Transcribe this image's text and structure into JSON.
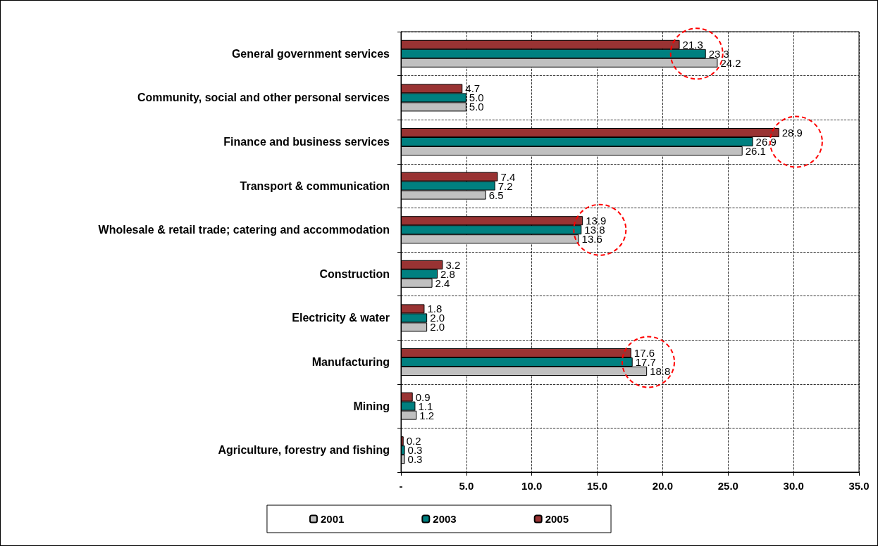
{
  "chart_data": {
    "type": "bar",
    "orientation": "horizontal",
    "categories": [
      "General government services",
      "Community, social and other personal services",
      "Finance and business services",
      "Transport & communication",
      "Wholesale & retail trade; catering and accommodation",
      "Construction",
      "Electricity & water",
      "Manufacturing",
      "Mining",
      "Agriculture, forestry and fishing"
    ],
    "series": [
      {
        "name": "2001",
        "color": "#c0c0c0",
        "values": [
          24.2,
          5.0,
          26.1,
          6.5,
          13.6,
          2.4,
          2.0,
          18.8,
          1.2,
          0.3
        ],
        "value_labels": [
          "24.2",
          "5.0",
          "26.1",
          "6.5",
          "13.6",
          "2.4",
          "2.0",
          "18.8",
          "1.2",
          "0.3"
        ]
      },
      {
        "name": "2003",
        "color": "#008080",
        "values": [
          23.3,
          5.0,
          26.9,
          7.2,
          13.8,
          2.8,
          2.0,
          17.7,
          1.1,
          0.3
        ],
        "value_labels": [
          "23.3",
          "5.0",
          "26.9",
          "7.2",
          "13.8",
          "2.8",
          "2.0",
          "17.7",
          "1.1",
          "0.3"
        ]
      },
      {
        "name": "2005",
        "color": "#993333",
        "values": [
          21.3,
          4.7,
          28.9,
          7.4,
          13.9,
          3.2,
          1.8,
          17.6,
          0.9,
          0.2
        ],
        "value_labels": [
          "21.3",
          "4.7",
          "28.9",
          "7.4",
          "13.9",
          "3.2",
          "1.8",
          "17.6",
          "0.9",
          "0.2"
        ]
      }
    ],
    "xlim": [
      0,
      35
    ],
    "xticks": [
      {
        "value": 0,
        "label": "-"
      },
      {
        "value": 5,
        "label": "5.0"
      },
      {
        "value": 10,
        "label": "10.0"
      },
      {
        "value": 15,
        "label": "15.0"
      },
      {
        "value": 20,
        "label": "20.0"
      },
      {
        "value": 25,
        "label": "25.0"
      },
      {
        "value": 30,
        "label": "30.0"
      },
      {
        "value": 35,
        "label": "35.0"
      }
    ],
    "grid": true,
    "legend": "bottom"
  }
}
